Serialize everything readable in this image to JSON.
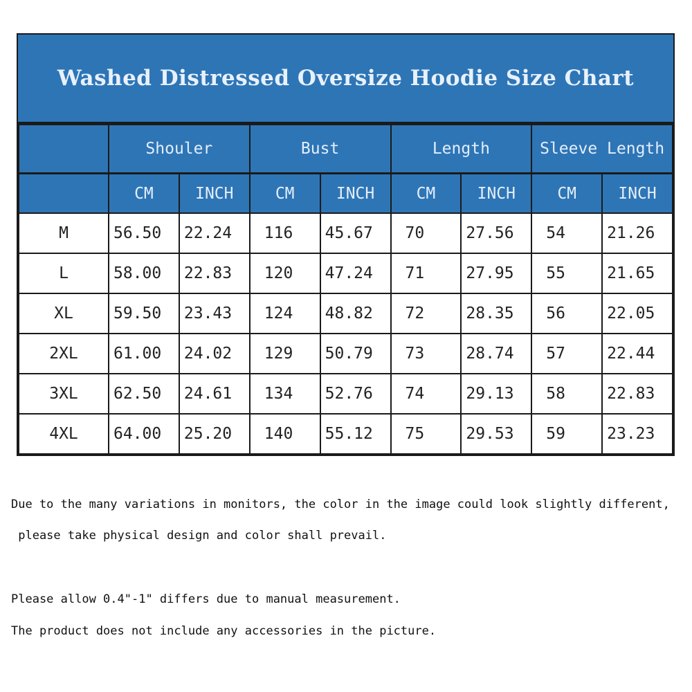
{
  "title": "Washed Distressed Oversize Hoodie Size Chart",
  "groups": [
    "Shouler",
    "Bust",
    "Length",
    "Sleeve Length"
  ],
  "units": [
    "CM",
    "INCH",
    "CM",
    "INCH",
    "CM",
    "INCH",
    "CM",
    "INCH"
  ],
  "rows": [
    {
      "size": "M",
      "values": [
        "56.50",
        "22.24",
        "116",
        "45.67",
        "70",
        "27.56",
        "54",
        "21.26"
      ]
    },
    {
      "size": "L",
      "values": [
        "58.00",
        "22.83",
        "120",
        "47.24",
        "71",
        "27.95",
        "55",
        "21.65"
      ]
    },
    {
      "size": "XL",
      "values": [
        "59.50",
        "23.43",
        "124",
        "48.82",
        "72",
        "28.35",
        "56",
        "22.05"
      ]
    },
    {
      "size": "2XL",
      "values": [
        "61.00",
        "24.02",
        "129",
        "50.79",
        "73",
        "28.74",
        "57",
        "22.44"
      ]
    },
    {
      "size": "3XL",
      "values": [
        "62.50",
        "24.61",
        "134",
        "52.76",
        "74",
        "29.13",
        "58",
        "22.83"
      ]
    },
    {
      "size": "4XL",
      "values": [
        "64.00",
        "25.20",
        "140",
        "55.12",
        "75",
        "29.53",
        "59",
        "23.23"
      ]
    }
  ],
  "notes": [
    "Due to the many variations in monitors, the color in the image could look slightly different,",
    " please take physical design and color shall prevail.",
    "Please allow 0.4\"-1\" differs due to manual measurement.",
    "The product does not include any accessories in the picture."
  ],
  "colors": {
    "header_bg": "#2e75b6",
    "header_text": "#e3eefa"
  }
}
